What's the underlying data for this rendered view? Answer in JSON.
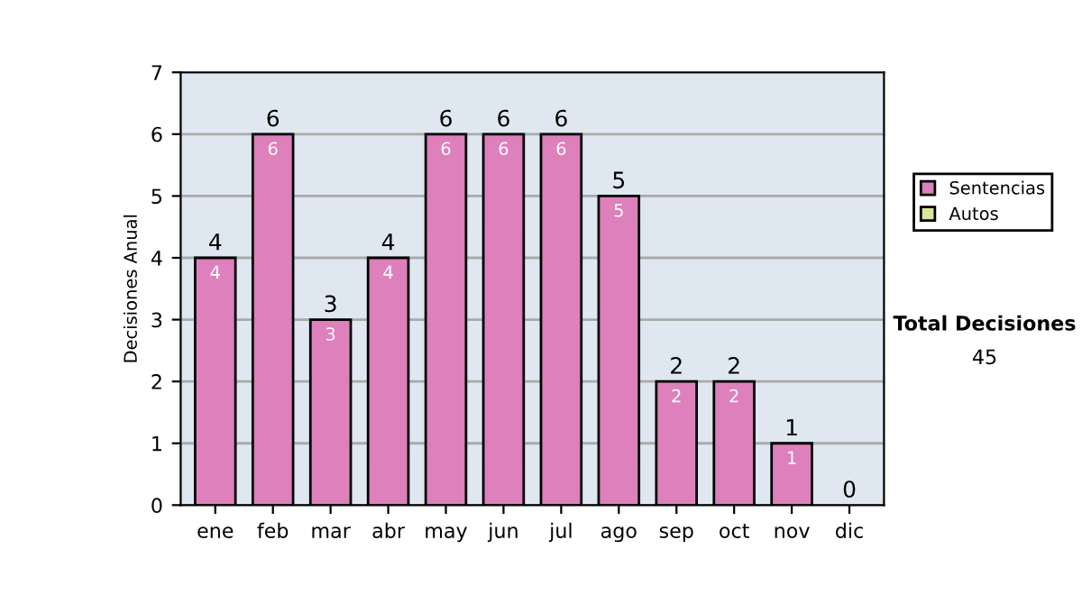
{
  "chart_data": {
    "type": "bar",
    "stacked": true,
    "ylabel": "Decisiones Anual",
    "categories": [
      "ene",
      "feb",
      "mar",
      "abr",
      "may",
      "jun",
      "jul",
      "ago",
      "sep",
      "oct",
      "nov",
      "dic"
    ],
    "series": [
      {
        "name": "Sentencias",
        "color": "#dd80bb",
        "values": [
          4,
          6,
          3,
          4,
          6,
          6,
          6,
          5,
          2,
          2,
          1,
          0
        ],
        "value_labels": [
          "4",
          "6",
          "3",
          "4",
          "6",
          "6",
          "6",
          "5",
          "2",
          "2",
          "1",
          null
        ]
      },
      {
        "name": "Autos",
        "color": "#d6e89c",
        "values": [
          0,
          0,
          0,
          0,
          0,
          0,
          0,
          0,
          0,
          0,
          0,
          0
        ]
      }
    ],
    "totals": [
      "4",
      "6",
      "3",
      "4",
      "6",
      "6",
      "6",
      "5",
      "2",
      "2",
      "1",
      "0"
    ],
    "ylim": [
      0,
      7
    ],
    "yticks": [
      0,
      1,
      2,
      3,
      4,
      5,
      6,
      7
    ],
    "grid": "y",
    "legend": "right",
    "annotations": [
      "Total Decisiones",
      "45"
    ]
  }
}
